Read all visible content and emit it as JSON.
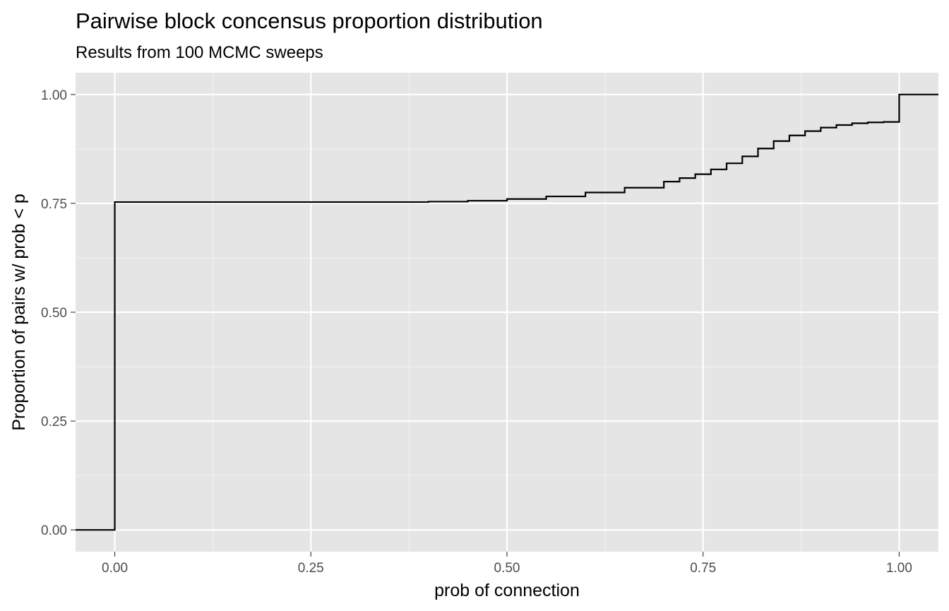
{
  "chart_data": {
    "type": "line",
    "subtype": "step (ecdf)",
    "title": "Pairwise block concensus proportion distribution",
    "subtitle": "Results from 100 MCMC sweeps",
    "xlabel": "prob of connection",
    "ylabel": "Proportion of pairs w/ prob < p",
    "xlim": [
      -0.05,
      1.05
    ],
    "ylim": [
      -0.05,
      1.05
    ],
    "x_ticks": [
      0.0,
      0.25,
      0.5,
      0.75,
      1.0
    ],
    "x_tick_labels": [
      "0.00",
      "0.25",
      "0.50",
      "0.75",
      "1.00"
    ],
    "y_ticks": [
      0.0,
      0.25,
      0.5,
      0.75,
      1.0
    ],
    "y_tick_labels": [
      "0.00",
      "0.25",
      "0.50",
      "0.75",
      "1.00"
    ],
    "grid": true,
    "background": "#e5e5e5",
    "line_color": "#000000",
    "x": [
      0.0,
      0.37,
      0.4,
      0.45,
      0.5,
      0.55,
      0.6,
      0.65,
      0.7,
      0.72,
      0.74,
      0.76,
      0.78,
      0.8,
      0.82,
      0.84,
      0.86,
      0.88,
      0.9,
      0.92,
      0.94,
      0.96,
      0.98,
      1.0
    ],
    "y": [
      0.753,
      0.753,
      0.754,
      0.756,
      0.76,
      0.766,
      0.775,
      0.786,
      0.8,
      0.808,
      0.817,
      0.828,
      0.842,
      0.858,
      0.876,
      0.893,
      0.906,
      0.916,
      0.924,
      0.93,
      0.934,
      0.936,
      0.937,
      1.0
    ]
  }
}
